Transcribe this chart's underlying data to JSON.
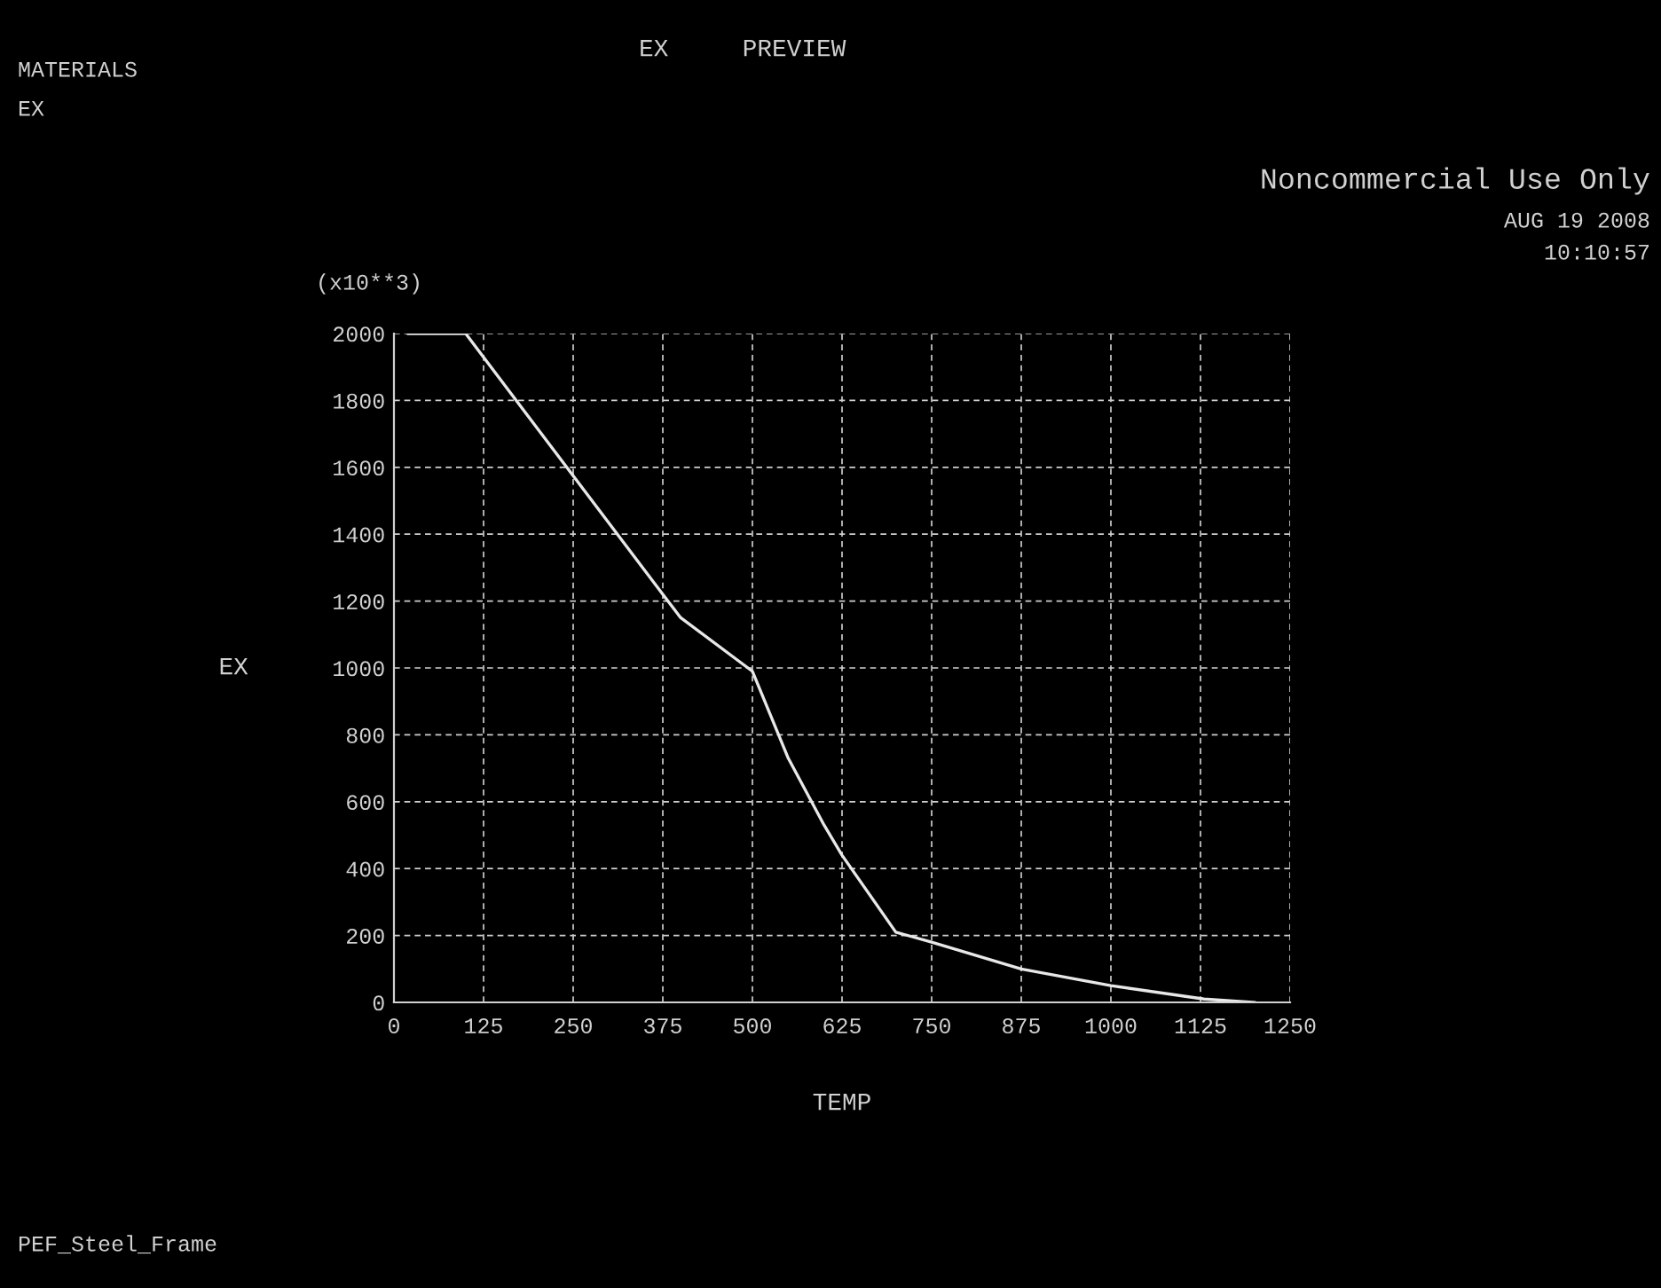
{
  "chart_data": {
    "type": "line",
    "title": "EX     PREVIEW",
    "xlabel": "TEMP",
    "ylabel": "EX",
    "annotations": [
      "MATERIALS",
      "EX",
      "Noncommercial Use Only",
      "AUG 19 2008",
      "10:10:57",
      "(x10**3)",
      "PEF_Steel_Frame"
    ],
    "x": [
      20,
      100,
      375,
      400,
      500,
      550,
      600,
      625,
      700,
      750,
      875,
      1000,
      1130,
      1200
    ],
    "series": [
      {
        "color": "#e8e8e8",
        "values": [
          2000,
          2000,
          1220,
          1150,
          990,
          730,
          530,
          440,
          210,
          180,
          100,
          50,
          10,
          0
        ]
      }
    ],
    "xlim": [
      0,
      1250
    ],
    "xticks": [
      0,
      125,
      250,
      375,
      500,
      625,
      750,
      875,
      1000,
      1125,
      1250
    ],
    "ylim": [
      0,
      2000
    ],
    "yticks": [
      0,
      200,
      400,
      600,
      800,
      1000,
      1200,
      1400,
      1600,
      1800,
      2000
    ],
    "grid": true,
    "marker": "none",
    "line_style": "solid"
  }
}
